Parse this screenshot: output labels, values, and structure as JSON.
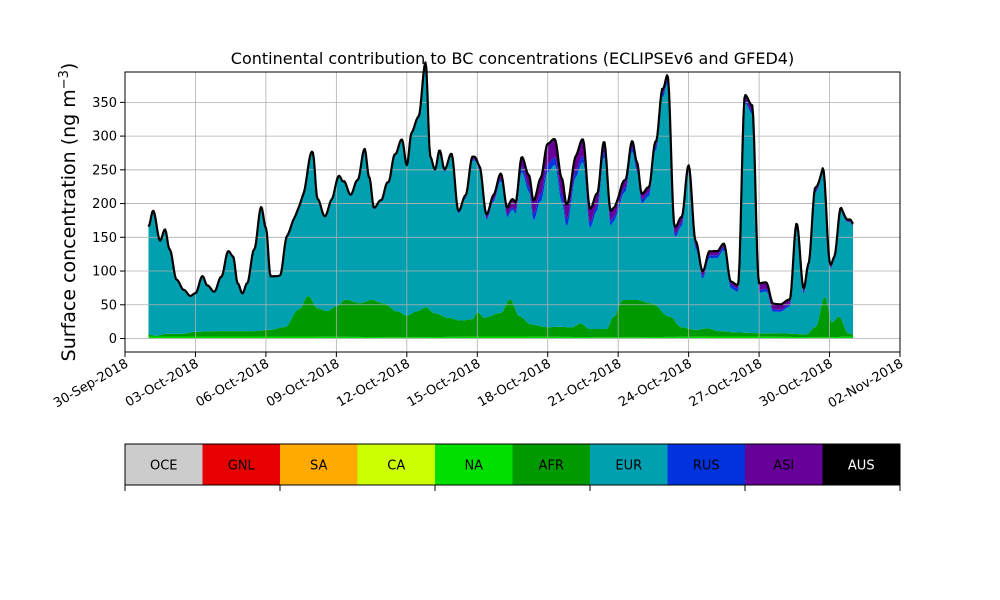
{
  "chart_data": {
    "type": "area",
    "stacked": true,
    "title": "Continental contribution to BC concentrations (ECLIPSEv6 and GFED4)",
    "ylabel": "Surface concentration (ng m⁻³)",
    "ylabel_parts": {
      "main": "Surface concentration (ng m",
      "sup": "−3",
      "close": ")"
    },
    "xlabel": "",
    "x_start": "2018-10-01",
    "x_end": "2018-10-31",
    "xlim": [
      "2018-09-30",
      "2018-11-02"
    ],
    "ylim": [
      -20,
      395
    ],
    "yticks": [
      0,
      50,
      100,
      150,
      200,
      250,
      300,
      350
    ],
    "ytick_labels": [
      "0",
      "50",
      "100",
      "150",
      "200",
      "250",
      "300",
      "350"
    ],
    "xticks": [
      "2018-09-30",
      "2018-10-03",
      "2018-10-06",
      "2018-10-09",
      "2018-10-12",
      "2018-10-15",
      "2018-10-18",
      "2018-10-21",
      "2018-10-24",
      "2018-10-27",
      "2018-10-30",
      "2018-11-02"
    ],
    "xtick_labels": [
      "30-Sep-2018",
      "03-Oct-2018",
      "06-Oct-2018",
      "09-Oct-2018",
      "12-Oct-2018",
      "15-Oct-2018",
      "18-Oct-2018",
      "21-Oct-2018",
      "24-Oct-2018",
      "27-Oct-2018",
      "30-Oct-2018",
      "02-Nov-2018"
    ],
    "grid": true,
    "legend": {
      "placement": "bottom",
      "entries": [
        {
          "label": "OCE",
          "color": "#cccccc"
        },
        {
          "label": "GNL",
          "color": "#e60000"
        },
        {
          "label": "SA",
          "color": "#ffaa00"
        },
        {
          "label": "CA",
          "color": "#ccff00"
        },
        {
          "label": "NA",
          "color": "#00e000"
        },
        {
          "label": "AFR",
          "color": "#009900"
        },
        {
          "label": "EUR",
          "color": "#00a0b0"
        },
        {
          "label": "RUS",
          "color": "#0033dd"
        },
        {
          "label": "ASI",
          "color": "#660099"
        },
        {
          "label": "AUS",
          "color": "#000000"
        }
      ]
    },
    "total_line_color": "#000000",
    "series": [
      {
        "name": "NA",
        "color": "#00e000",
        "keypoints": [
          [
            0,
            3
          ],
          [
            6,
            3
          ],
          [
            11,
            2
          ],
          [
            15,
            3
          ],
          [
            20,
            2
          ],
          [
            25,
            3
          ],
          [
            29,
            2
          ],
          [
            30,
            3
          ]
        ]
      },
      {
        "name": "AFR",
        "color": "#009900",
        "keypoints": [
          [
            0,
            3
          ],
          [
            0.3,
            1
          ],
          [
            0.8,
            4
          ],
          [
            1.5,
            4
          ],
          [
            2,
            7
          ],
          [
            3,
            8
          ],
          [
            4.5,
            8
          ],
          [
            5.2,
            10
          ],
          [
            5.8,
            14
          ],
          [
            6.4,
            40
          ],
          [
            6.8,
            60
          ],
          [
            7.2,
            42
          ],
          [
            7.6,
            38
          ],
          [
            8,
            45
          ],
          [
            8.4,
            55
          ],
          [
            9,
            50
          ],
          [
            9.5,
            55
          ],
          [
            10,
            50
          ],
          [
            10.6,
            38
          ],
          [
            11,
            32
          ],
          [
            11.4,
            38
          ],
          [
            11.8,
            44
          ],
          [
            12.2,
            35
          ],
          [
            12.8,
            28
          ],
          [
            13.3,
            24
          ],
          [
            13.8,
            26
          ],
          [
            14,
            36
          ],
          [
            14.3,
            28
          ],
          [
            15,
            35
          ],
          [
            15.4,
            55
          ],
          [
            15.8,
            30
          ],
          [
            16.3,
            18
          ],
          [
            17,
            14
          ],
          [
            17.5,
            15
          ],
          [
            18,
            14
          ],
          [
            18.4,
            20
          ],
          [
            18.8,
            12
          ],
          [
            19.5,
            12
          ],
          [
            19.8,
            30
          ],
          [
            20.2,
            55
          ],
          [
            20.8,
            55
          ],
          [
            21.4,
            50
          ],
          [
            22.2,
            30
          ],
          [
            22.7,
            14
          ],
          [
            23.3,
            10
          ],
          [
            23.8,
            12
          ],
          [
            24.3,
            8
          ],
          [
            25,
            6
          ],
          [
            26,
            5
          ],
          [
            27,
            5
          ],
          [
            28,
            4
          ],
          [
            28.4,
            15
          ],
          [
            28.8,
            60
          ],
          [
            29.1,
            22
          ],
          [
            29.4,
            30
          ],
          [
            29.8,
            5
          ],
          [
            30,
            3
          ]
        ]
      },
      {
        "name": "EUR",
        "color": "#00a0b0",
        "keypoints": [
          [
            0,
            160
          ],
          [
            0.2,
            185
          ],
          [
            0.5,
            140
          ],
          [
            0.7,
            155
          ],
          [
            0.9,
            125
          ],
          [
            1.2,
            80
          ],
          [
            1.5,
            65
          ],
          [
            1.8,
            54
          ],
          [
            2,
            57
          ],
          [
            2.3,
            82
          ],
          [
            2.5,
            68
          ],
          [
            2.8,
            58
          ],
          [
            3.1,
            80
          ],
          [
            3.4,
            118
          ],
          [
            3.6,
            110
          ],
          [
            3.8,
            70
          ],
          [
            4,
            55
          ],
          [
            4.2,
            70
          ],
          [
            4.5,
            120
          ],
          [
            4.8,
            182
          ],
          [
            5,
            150
          ],
          [
            5.2,
            78
          ],
          [
            5.6,
            76
          ],
          [
            5.9,
            132
          ],
          [
            6.2,
            140
          ],
          [
            6.6,
            160
          ],
          [
            7,
            220
          ],
          [
            7.2,
            160
          ],
          [
            7.5,
            138
          ],
          [
            7.8,
            160
          ],
          [
            8.1,
            190
          ],
          [
            8.3,
            175
          ],
          [
            8.6,
            155
          ],
          [
            8.9,
            180
          ],
          [
            9.2,
            225
          ],
          [
            9.4,
            180
          ],
          [
            9.6,
            135
          ],
          [
            9.9,
            150
          ],
          [
            10.2,
            180
          ],
          [
            10.5,
            230
          ],
          [
            10.8,
            255
          ],
          [
            11,
            220
          ],
          [
            11.2,
            265
          ],
          [
            11.5,
            285
          ],
          [
            11.8,
            360
          ],
          [
            12,
            225
          ],
          [
            12.2,
            210
          ],
          [
            12.4,
            240
          ],
          [
            12.6,
            215
          ],
          [
            12.9,
            240
          ],
          [
            13.2,
            158
          ],
          [
            13.5,
            180
          ],
          [
            13.8,
            235
          ],
          [
            14.1,
            212
          ],
          [
            14.4,
            145
          ],
          [
            14.7,
            168
          ],
          [
            15,
            195
          ],
          [
            15.3,
            125
          ],
          [
            15.6,
            140
          ],
          [
            15.9,
            215
          ],
          [
            16.2,
            195
          ],
          [
            16.4,
            155
          ],
          [
            16.7,
            185
          ],
          [
            17,
            230
          ],
          [
            17.3,
            240
          ],
          [
            17.6,
            185
          ],
          [
            17.8,
            150
          ],
          [
            18.2,
            220
          ],
          [
            18.5,
            240
          ],
          [
            18.8,
            150
          ],
          [
            19.1,
            175
          ],
          [
            19.4,
            255
          ],
          [
            19.7,
            140
          ],
          [
            20,
            145
          ],
          [
            20.3,
            160
          ],
          [
            20.6,
            220
          ],
          [
            20.8,
            190
          ],
          [
            21,
            145
          ],
          [
            21.3,
            158
          ],
          [
            21.6,
            230
          ],
          [
            21.9,
            320
          ],
          [
            22.1,
            345
          ],
          [
            22.4,
            125
          ],
          [
            22.7,
            150
          ],
          [
            23,
            230
          ],
          [
            23.3,
            120
          ],
          [
            23.6,
            75
          ],
          [
            23.9,
            105
          ],
          [
            24.2,
            108
          ],
          [
            24.5,
            120
          ],
          [
            24.8,
            65
          ],
          [
            25.1,
            60
          ],
          [
            25.4,
            340
          ],
          [
            25.7,
            325
          ],
          [
            26,
            60
          ],
          [
            26.3,
            62
          ],
          [
            26.6,
            32
          ],
          [
            26.9,
            32
          ],
          [
            27.3,
            40
          ],
          [
            27.6,
            155
          ],
          [
            27.9,
            60
          ],
          [
            28.1,
            95
          ],
          [
            28.4,
            200
          ],
          [
            28.7,
            190
          ],
          [
            29,
            75
          ],
          [
            29.2,
            90
          ],
          [
            29.5,
            160
          ],
          [
            29.9,
            165
          ],
          [
            30,
            160
          ]
        ]
      },
      {
        "name": "RUS",
        "color": "#0033dd",
        "keypoints": [
          [
            0,
            0
          ],
          [
            10,
            1
          ],
          [
            14,
            2
          ],
          [
            15.5,
            4
          ],
          [
            16,
            8
          ],
          [
            17,
            12
          ],
          [
            18,
            10
          ],
          [
            19,
            8
          ],
          [
            20,
            7
          ],
          [
            21,
            6
          ],
          [
            22,
            5
          ],
          [
            23,
            4
          ],
          [
            24,
            4
          ],
          [
            25,
            5
          ],
          [
            26,
            4
          ],
          [
            27,
            3
          ],
          [
            28,
            2
          ],
          [
            30,
            1
          ]
        ]
      },
      {
        "name": "ASI",
        "color": "#660099",
        "keypoints": [
          [
            0,
            0
          ],
          [
            8,
            1
          ],
          [
            13,
            2
          ],
          [
            14,
            4
          ],
          [
            15,
            8
          ],
          [
            15.5,
            12
          ],
          [
            16,
            15
          ],
          [
            16.5,
            20
          ],
          [
            17,
            30
          ],
          [
            17.5,
            25
          ],
          [
            18,
            20
          ],
          [
            18.5,
            25
          ],
          [
            19,
            18
          ],
          [
            19.5,
            15
          ],
          [
            20,
            12
          ],
          [
            21,
            8
          ],
          [
            22,
            7
          ],
          [
            22.5,
            10
          ],
          [
            23,
            8
          ],
          [
            24,
            6
          ],
          [
            25,
            5
          ],
          [
            25.5,
            8
          ],
          [
            26,
            10
          ],
          [
            27,
            8
          ],
          [
            28,
            6
          ],
          [
            29,
            4
          ],
          [
            30,
            3
          ]
        ]
      }
    ]
  }
}
